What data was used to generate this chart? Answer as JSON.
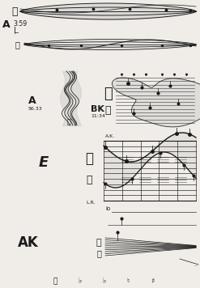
{
  "bg_color": "#f0ede8",
  "line_color": "#1a1a1a",
  "text_color": "#1a1a1a",
  "light_gray": "#c8c8c8",
  "mid_gray": "#999999",
  "label_A_top": "A",
  "label_time_top": "3:59",
  "label_A_mid": "A",
  "label_A_mid_time": "56.33",
  "label_BK": "BK",
  "label_BK_time": "11:34",
  "label_E": "E",
  "label_AK_small": "A.K.",
  "label_LR": "L.R.",
  "label_lo": "lo",
  "label_AK_bot": "AK",
  "figsize": [
    2.47,
    3.56
  ],
  "dpi": 100
}
